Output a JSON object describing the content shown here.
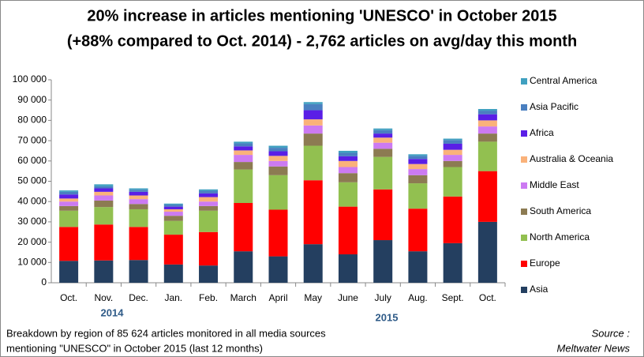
{
  "chart_data": {
    "type": "stacked_bar",
    "title": [
      "20% increase in articles mentioning 'UNESCO' in October 2015",
      "(+88% compared to Oct. 2014) -  2,762 articles on avg/day this month"
    ],
    "categories": [
      "Oct.",
      "Nov.",
      "Dec.",
      "Jan.",
      "Feb.",
      "March",
      "April",
      "May",
      "June",
      "July",
      "Aug.",
      "Sept.",
      "Oct."
    ],
    "year_labels": [
      "2014",
      "2015"
    ],
    "series": [
      {
        "name": "Asia",
        "color": "#243f60",
        "values": [
          10800,
          11000,
          11200,
          9000,
          8500,
          15500,
          13000,
          19000,
          14000,
          21000,
          15500,
          19500,
          30000
        ]
      },
      {
        "name": "Europe",
        "color": "#ff0000",
        "values": [
          16700,
          17700,
          16300,
          14700,
          16500,
          23800,
          23000,
          31500,
          23500,
          25000,
          21000,
          23000,
          25000
        ]
      },
      {
        "name": "North America",
        "color": "#92c050",
        "values": [
          8000,
          8600,
          8700,
          6800,
          10500,
          16500,
          17000,
          17000,
          12000,
          16000,
          12500,
          14500,
          14500
        ]
      },
      {
        "name": "South America",
        "color": "#8c7b52",
        "values": [
          2300,
          3200,
          2600,
          2500,
          2300,
          3700,
          4300,
          6000,
          4500,
          4000,
          4000,
          3000,
          4000
        ]
      },
      {
        "name": "Middle East",
        "color": "#cc7af2",
        "values": [
          2200,
          2500,
          2400,
          2000,
          2200,
          3500,
          2700,
          4000,
          3000,
          3000,
          3000,
          3000,
          3500
        ]
      },
      {
        "name": "Australia & Oceania",
        "color": "#fab27a",
        "values": [
          1500,
          1800,
          1800,
          1200,
          2200,
          2200,
          2500,
          3000,
          3000,
          2500,
          2500,
          2500,
          3000
        ]
      },
      {
        "name": "Africa",
        "color": "#5a1ee6",
        "values": [
          2000,
          1700,
          1800,
          1300,
          1800,
          2000,
          2300,
          4500,
          2300,
          2000,
          2500,
          3000,
          3000
        ]
      },
      {
        "name": "Asia Pacific",
        "color": "#4a7fc0",
        "values": [
          1300,
          1000,
          1000,
          1000,
          1300,
          1500,
          1700,
          3000,
          1700,
          1700,
          1500,
          1800,
          1800
        ]
      },
      {
        "name": "Central America",
        "color": "#40a0c0",
        "values": [
          700,
          1000,
          700,
          500,
          700,
          800,
          1000,
          1000,
          1000,
          800,
          800,
          700,
          800
        ]
      }
    ],
    "ylim": [
      0,
      100000
    ],
    "yticks": [
      0,
      {
        "value": 10000,
        "label": "10 000"
      },
      {
        "value": 20000,
        "label": "20 000"
      },
      {
        "value": 30000,
        "label": "30 000"
      },
      {
        "value": 40000,
        "label": "40 000"
      },
      {
        "value": 50000,
        "label": "50 000"
      },
      {
        "value": 60000,
        "label": "60 000"
      },
      {
        "value": 70000,
        "label": "70 000"
      },
      {
        "value": 80000,
        "label": "80 000"
      },
      {
        "value": 90000,
        "label": "90 000"
      },
      {
        "value": 100000,
        "label": "100 000"
      }
    ],
    "grid": false,
    "legend": "right",
    "caption": [
      "Breakdown by region of 85 624 articles monitored in all media sources",
      "mentioning  \"UNESCO\" in October 2015  (last 12 months)"
    ],
    "source": [
      "Source :",
      "Meltwater News"
    ]
  }
}
